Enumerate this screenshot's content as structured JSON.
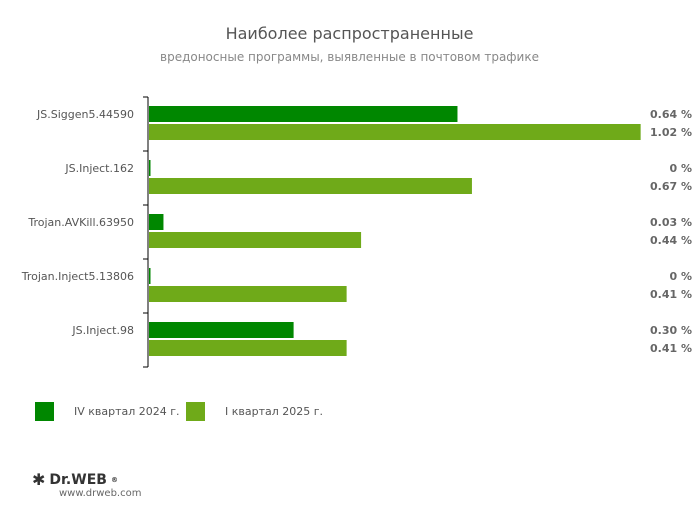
{
  "chart_data": {
    "type": "bar",
    "orientation": "horizontal",
    "title": "Наиболее распространенные",
    "subtitle": "вредоносные программы, выявленные в почтовом трафике",
    "categories": [
      "JS.Siggen5.44590",
      "JS.Inject.162",
      "Trojan.AVKill.63950",
      "Trojan.Inject5.13806",
      "JS.Inject.98"
    ],
    "series": [
      {
        "name": "IV квартал 2024 г.",
        "color": "#008700",
        "values": [
          0.64,
          0,
          0.03,
          0,
          0.3
        ],
        "labels": [
          "0.64 %",
          "0 %",
          "0.03 %",
          "0 %",
          "0.30 %"
        ]
      },
      {
        "name": "I квартал 2025 г.",
        "color": "#6faa19",
        "values": [
          1.02,
          0.67,
          0.44,
          0.41,
          0.41
        ],
        "labels": [
          "1.02 %",
          "0.67 %",
          "0.44 %",
          "0.41 %",
          "0.41 %"
        ]
      }
    ],
    "unit": "%",
    "legend": "bottom-left",
    "grid": false
  },
  "footer": {
    "brand": "Dr.WEB",
    "url": "www.drweb.com"
  }
}
